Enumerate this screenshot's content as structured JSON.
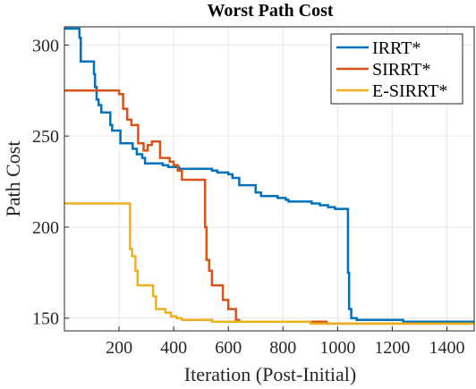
{
  "chart_data": {
    "type": "line",
    "title": "Worst Path Cost",
    "xlabel": "Iteration (Post-Initial)",
    "ylabel": "Path Cost",
    "xlim": [
      0,
      1500
    ],
    "ylim": [
      143,
      310
    ],
    "xticks": [
      200,
      400,
      600,
      800,
      1000,
      1200,
      1400
    ],
    "yticks": [
      150,
      200,
      250,
      300
    ],
    "grid": true,
    "legend": "top-right",
    "series": [
      {
        "name": "IRRT*",
        "color": "#0072BD",
        "step": true,
        "points": [
          [
            0,
            309
          ],
          [
            45,
            309
          ],
          [
            55,
            304
          ],
          [
            60,
            291
          ],
          [
            100,
            291
          ],
          [
            108,
            284
          ],
          [
            112,
            277
          ],
          [
            118,
            270
          ],
          [
            125,
            267
          ],
          [
            135,
            263
          ],
          [
            160,
            263
          ],
          [
            168,
            256
          ],
          [
            175,
            253
          ],
          [
            200,
            253
          ],
          [
            205,
            246
          ],
          [
            240,
            246
          ],
          [
            250,
            243
          ],
          [
            265,
            240
          ],
          [
            285,
            238
          ],
          [
            295,
            235
          ],
          [
            340,
            235
          ],
          [
            360,
            234
          ],
          [
            380,
            233
          ],
          [
            420,
            232
          ],
          [
            510,
            232
          ],
          [
            540,
            231
          ],
          [
            560,
            230
          ],
          [
            600,
            229
          ],
          [
            615,
            227
          ],
          [
            640,
            223
          ],
          [
            690,
            223
          ],
          [
            700,
            219
          ],
          [
            720,
            217
          ],
          [
            780,
            216
          ],
          [
            810,
            215
          ],
          [
            820,
            214
          ],
          [
            880,
            214
          ],
          [
            905,
            213
          ],
          [
            935,
            212
          ],
          [
            965,
            211
          ],
          [
            990,
            210
          ],
          [
            1035,
            210
          ],
          [
            1038,
            175
          ],
          [
            1042,
            155
          ],
          [
            1050,
            150
          ],
          [
            1070,
            149
          ],
          [
            1230,
            149
          ],
          [
            1240,
            148
          ],
          [
            1500,
            148
          ]
        ]
      },
      {
        "name": "SIRRT*",
        "color": "#D95319",
        "step": true,
        "points": [
          [
            0,
            275
          ],
          [
            195,
            275
          ],
          [
            200,
            273
          ],
          [
            215,
            265
          ],
          [
            230,
            259
          ],
          [
            245,
            256
          ],
          [
            265,
            256
          ],
          [
            270,
            246
          ],
          [
            290,
            242
          ],
          [
            300,
            242
          ],
          [
            305,
            245
          ],
          [
            320,
            247
          ],
          [
            345,
            247
          ],
          [
            350,
            238
          ],
          [
            380,
            238
          ],
          [
            385,
            236
          ],
          [
            400,
            234
          ],
          [
            415,
            231
          ],
          [
            430,
            226
          ],
          [
            510,
            226
          ],
          [
            515,
            200
          ],
          [
            520,
            182
          ],
          [
            530,
            176
          ],
          [
            540,
            168
          ],
          [
            575,
            168
          ],
          [
            580,
            160
          ],
          [
            600,
            155
          ],
          [
            620,
            155
          ],
          [
            628,
            149
          ],
          [
            640,
            148
          ],
          [
            720,
            148
          ],
          [
            800,
            148
          ],
          [
            880,
            148
          ],
          [
            960,
            147
          ],
          [
            1500,
            147
          ]
        ]
      },
      {
        "name": "E-SIRRT*",
        "color": "#EDB120",
        "step": true,
        "points": [
          [
            0,
            213
          ],
          [
            235,
            213
          ],
          [
            240,
            188
          ],
          [
            248,
            184
          ],
          [
            260,
            176
          ],
          [
            268,
            168
          ],
          [
            320,
            168
          ],
          [
            325,
            162
          ],
          [
            335,
            155
          ],
          [
            360,
            155
          ],
          [
            370,
            153
          ],
          [
            390,
            151
          ],
          [
            410,
            150
          ],
          [
            430,
            149
          ],
          [
            480,
            149
          ],
          [
            540,
            148
          ],
          [
            700,
            148
          ],
          [
            800,
            148
          ],
          [
            900,
            147
          ],
          [
            1000,
            147
          ],
          [
            1200,
            147
          ],
          [
            1500,
            147
          ]
        ]
      }
    ]
  }
}
